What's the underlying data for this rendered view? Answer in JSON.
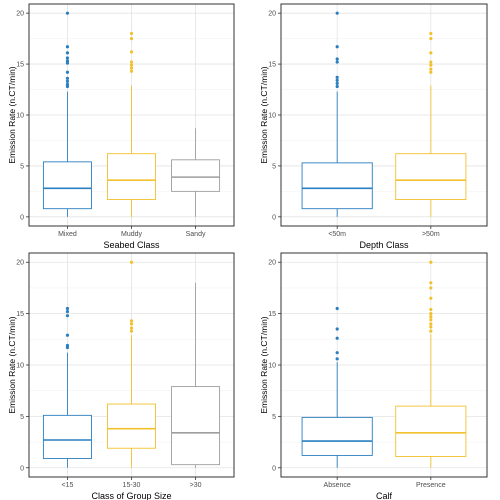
{
  "chart_data": [
    {
      "type": "box",
      "xlabel": "Seabed Class",
      "ylabel": "Emission Rate (n.CT/min)",
      "ylim": [
        0,
        20
      ],
      "yticks": [
        0,
        5,
        10,
        15,
        20
      ],
      "grid": true,
      "categories": [
        "Mixed",
        "Muddy",
        "Sandy"
      ],
      "colors": [
        "#2a7fc1",
        "#f2c12e",
        "#9e9e9e"
      ],
      "boxes": [
        {
          "whisker_low": 0,
          "q1": 0.8,
          "median": 2.8,
          "q3": 5.4,
          "whisker_high": 12.3,
          "outliers": [
            12.8,
            13.0,
            13.3,
            13.6,
            14.2,
            15.1,
            15.3,
            15.6,
            16.1,
            16.7,
            20.0
          ]
        },
        {
          "whisker_low": 0,
          "q1": 1.7,
          "median": 3.6,
          "q3": 6.2,
          "whisker_high": 12.9,
          "outliers": [
            14.3,
            14.6,
            14.9,
            15.2,
            16.2,
            17.5,
            18.0
          ]
        },
        {
          "whisker_low": 0,
          "q1": 2.5,
          "median": 3.9,
          "q3": 5.6,
          "whisker_high": 8.7,
          "outliers": []
        }
      ]
    },
    {
      "type": "box",
      "xlabel": "Depth Class",
      "ylabel": "Emission Rate (n.CT/min)",
      "ylim": [
        0,
        20
      ],
      "yticks": [
        0,
        5,
        10,
        15,
        20
      ],
      "grid": true,
      "categories": [
        "<50m",
        ">50m"
      ],
      "colors": [
        "#2a7fc1",
        "#f2c12e"
      ],
      "boxes": [
        {
          "whisker_low": 0,
          "q1": 0.8,
          "median": 2.8,
          "q3": 5.3,
          "whisker_high": 12.3,
          "outliers": [
            12.8,
            13.1,
            13.4,
            13.7,
            15.2,
            15.5,
            16.7,
            20.0
          ]
        },
        {
          "whisker_low": 0,
          "q1": 1.7,
          "median": 3.6,
          "q3": 6.2,
          "whisker_high": 12.9,
          "outliers": [
            14.2,
            14.5,
            14.9,
            15.2,
            16.1,
            17.5,
            18.0
          ]
        }
      ]
    },
    {
      "type": "box",
      "xlabel": "Class of Group Size",
      "ylabel": "Emission Rate (n.CT/min)",
      "ylim": [
        0,
        20
      ],
      "yticks": [
        0,
        5,
        10,
        15,
        20
      ],
      "grid": true,
      "categories": [
        "<15",
        "15-30",
        ">30"
      ],
      "colors": [
        "#2a7fc1",
        "#f2c12e",
        "#9e9e9e"
      ],
      "boxes": [
        {
          "whisker_low": 0,
          "q1": 0.9,
          "median": 2.7,
          "q3": 5.1,
          "whisker_high": 11.2,
          "outliers": [
            11.7,
            11.9,
            12.9,
            14.8,
            15.2,
            15.5
          ]
        },
        {
          "whisker_low": 0,
          "q1": 1.9,
          "median": 3.8,
          "q3": 6.2,
          "whisker_high": 12.9,
          "outliers": [
            13.3,
            13.6,
            14.0,
            14.3,
            20.0
          ]
        },
        {
          "whisker_low": 0,
          "q1": 0.3,
          "median": 3.4,
          "q3": 7.9,
          "whisker_high": 18.0,
          "outliers": []
        }
      ]
    },
    {
      "type": "box",
      "xlabel": "Calf",
      "ylabel": "Emission Rate (n.CT/min)",
      "ylim": [
        0,
        20
      ],
      "yticks": [
        0,
        5,
        10,
        15,
        20
      ],
      "grid": true,
      "categories": [
        "Absence",
        "Presence"
      ],
      "colors": [
        "#2a7fc1",
        "#f2c12e"
      ],
      "boxes": [
        {
          "whisker_low": 0,
          "q1": 1.2,
          "median": 2.6,
          "q3": 4.9,
          "whisker_high": 10.3,
          "outliers": [
            10.6,
            11.2,
            12.6,
            13.5,
            15.5
          ]
        },
        {
          "whisker_low": 0,
          "q1": 1.1,
          "median": 3.4,
          "q3": 6.0,
          "whisker_high": 13.0,
          "outliers": [
            13.3,
            13.7,
            14.0,
            14.4,
            14.7,
            15.0,
            15.4,
            16.5,
            17.5,
            18.0,
            20.0
          ]
        }
      ]
    }
  ]
}
